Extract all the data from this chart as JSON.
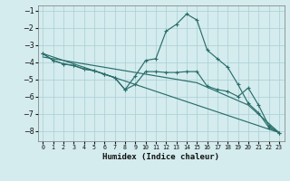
{
  "xlabel": "Humidex (Indice chaleur)",
  "background_color": "#d4ecee",
  "grid_color": "#aacdd4",
  "line_color": "#2a6e6b",
  "xlim": [
    -0.5,
    23.5
  ],
  "ylim": [
    -8.6,
    -0.7
  ],
  "yticks": [
    -8,
    -7,
    -6,
    -5,
    -4,
    -3,
    -2,
    -1
  ],
  "xticks": [
    0,
    1,
    2,
    3,
    4,
    5,
    6,
    7,
    8,
    9,
    10,
    11,
    12,
    13,
    14,
    15,
    16,
    17,
    18,
    19,
    20,
    21,
    22,
    23
  ],
  "series": [
    {
      "x": [
        0,
        1,
        2,
        3,
        4,
        5,
        6,
        7,
        8,
        9,
        10,
        11,
        12,
        13,
        14,
        15,
        16,
        17,
        18,
        19,
        20,
        21,
        22,
        23
      ],
      "y": [
        -3.5,
        -3.9,
        -4.1,
        -4.2,
        -4.4,
        -4.5,
        -4.7,
        -4.9,
        -5.6,
        -4.8,
        -3.9,
        -3.8,
        -2.2,
        -1.8,
        -1.2,
        -1.55,
        -3.3,
        -3.8,
        -4.3,
        -5.3,
        -6.4,
        -6.95,
        -7.8,
        -8.1
      ],
      "marker": true
    },
    {
      "x": [
        0,
        1,
        2,
        3,
        4,
        5,
        6,
        7,
        8,
        9,
        10,
        11,
        12,
        13,
        14,
        15,
        16,
        17,
        18,
        19,
        20,
        21,
        22,
        23
      ],
      "y": [
        -3.5,
        -3.9,
        -4.1,
        -4.2,
        -4.4,
        -4.5,
        -4.7,
        -4.9,
        -5.6,
        -5.3,
        -4.55,
        -4.55,
        -4.6,
        -4.6,
        -4.55,
        -4.55,
        -5.4,
        -5.6,
        -5.7,
        -6.0,
        -5.5,
        -6.5,
        -7.7,
        -8.1
      ],
      "marker": true
    },
    {
      "x": [
        0,
        23
      ],
      "y": [
        -3.5,
        -8.1
      ],
      "marker": false
    },
    {
      "x": [
        0,
        5,
        10,
        15,
        20,
        23
      ],
      "y": [
        -3.7,
        -4.2,
        -4.7,
        -5.2,
        -6.5,
        -8.1
      ],
      "marker": false
    }
  ]
}
